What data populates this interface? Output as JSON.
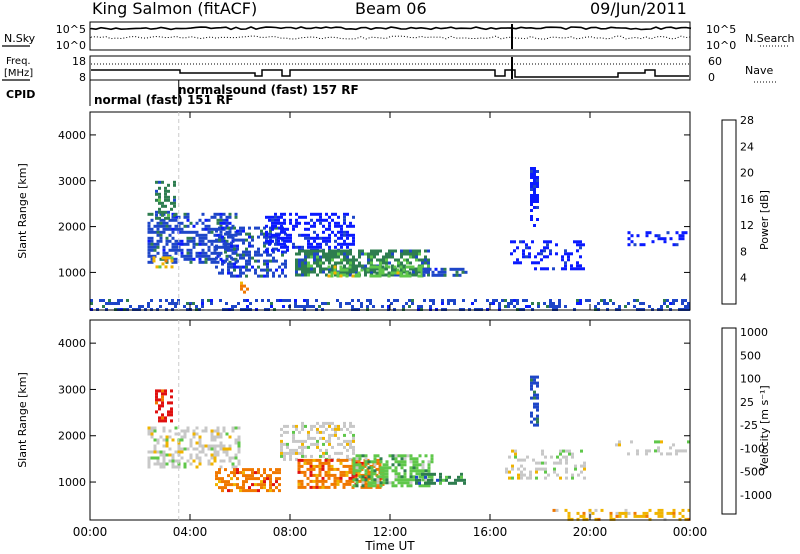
{
  "header": {
    "station": "King Salmon (fitACF)",
    "beam": "Beam 06",
    "date": "09/Jun/2011"
  },
  "noise_panel": {
    "left_label": "N.Sky",
    "left_top_tick": "10^5",
    "left_bottom_tick": "10^0",
    "right_label": "N.Search",
    "right_top_tick": "10^5",
    "right_bottom_tick": "10^0"
  },
  "freq_panel": {
    "left_label_line1": "Freq.",
    "left_label_line2": "[MHz]",
    "left_top_tick": "18",
    "left_bottom_tick": "8",
    "right_label": "Nave",
    "right_top_tick": "60",
    "right_bottom_tick": "0"
  },
  "cpid": {
    "label": "CPID",
    "modes": [
      {
        "text": "normal (fast) 151 RF",
        "start_hour": 0
      },
      {
        "text": "normalsound (fast) 157 RF",
        "start_hour": 3.55
      }
    ]
  },
  "chart_data": [
    {
      "type": "heatmap",
      "quantity": "power",
      "ylabel": "Slant Range [km]",
      "ylim": [
        180,
        4500
      ],
      "yticks": [
        1000,
        2000,
        3000,
        4000
      ],
      "xlim": [
        0,
        24
      ],
      "colorbar": {
        "label": "Power [dB]",
        "ticks": [
          "4",
          "8",
          "12",
          "16",
          "20",
          "24",
          "28"
        ],
        "colors": [
          "#0a1aff",
          "#1e46c8",
          "#2e7d4f",
          "#5fc74a",
          "#f0b400",
          "#f07800",
          "#e01010"
        ]
      },
      "regions": [
        {
          "t": [
            2.3,
            5.8
          ],
          "r": [
            1200,
            2300
          ],
          "level": 1,
          "density": 0.55
        },
        {
          "t": [
            2.6,
            3.4
          ],
          "r": [
            2200,
            3000
          ],
          "level": 2,
          "density": 0.5
        },
        {
          "t": [
            5.0,
            7.8
          ],
          "r": [
            900,
            2000
          ],
          "level": 1,
          "density": 0.45
        },
        {
          "t": [
            7.0,
            10.6
          ],
          "r": [
            1500,
            2300
          ],
          "level": 0,
          "density": 0.45
        },
        {
          "t": [
            8.2,
            13.6
          ],
          "r": [
            950,
            1500
          ],
          "level": 2,
          "density": 0.7
        },
        {
          "t": [
            9.5,
            13.3
          ],
          "r": [
            950,
            1150
          ],
          "level": 3,
          "density": 0.55
        },
        {
          "t": [
            13.3,
            15.0
          ],
          "r": [
            950,
            1100
          ],
          "level": 1,
          "density": 0.55
        },
        {
          "t": [
            16.8,
            19.8
          ],
          "r": [
            1100,
            1700
          ],
          "level": 0,
          "density": 0.3
        },
        {
          "t": [
            17.6,
            17.9
          ],
          "r": [
            2000,
            3300
          ],
          "level": 0,
          "density": 0.6
        },
        {
          "t": [
            2.5,
            3.3
          ],
          "r": [
            1150,
            1350
          ],
          "level": 4,
          "density": 0.5
        },
        {
          "t": [
            6.0,
            6.3
          ],
          "r": [
            600,
            800
          ],
          "level": 5,
          "density": 0.6
        },
        {
          "t": [
            21.5,
            24.0
          ],
          "r": [
            1600,
            1900
          ],
          "level": 0,
          "density": 0.25
        },
        {
          "t": [
            0.0,
            24.0
          ],
          "r": [
            180,
            420
          ],
          "level": 1,
          "density": 0.35
        }
      ]
    },
    {
      "type": "heatmap",
      "quantity": "velocity",
      "ylabel": "Slant Range [km]",
      "xlabel": "Time UT",
      "ylim": [
        180,
        4500
      ],
      "yticks": [
        1000,
        2000,
        3000,
        4000
      ],
      "xlim": [
        0,
        24
      ],
      "xticks": [
        "00:00",
        "04:00",
        "08:00",
        "12:00",
        "16:00",
        "20:00",
        "00:00"
      ],
      "colorbar": {
        "label": "Velocity [m s⁻¹]",
        "ticks": [
          "1000",
          "500",
          "100",
          "25",
          "-25",
          "-100",
          "-500",
          "-1000"
        ],
        "colors": [
          "#1e46c8",
          "#2e7d4f",
          "#5fc74a",
          "#c8c8c8",
          "#f0b400",
          "#f07800",
          "#e01010"
        ]
      },
      "regions": [
        {
          "t": [
            2.3,
            6.0
          ],
          "r": [
            1300,
            2200
          ],
          "level": 3,
          "density": 0.45
        },
        {
          "t": [
            2.6,
            3.3
          ],
          "r": [
            2300,
            3000
          ],
          "level": 6,
          "density": 0.5
        },
        {
          "t": [
            5.0,
            7.6
          ],
          "r": [
            800,
            1300
          ],
          "level": 5,
          "density": 0.55
        },
        {
          "t": [
            7.6,
            10.6
          ],
          "r": [
            1500,
            2300
          ],
          "level": 3,
          "density": 0.4
        },
        {
          "t": [
            8.3,
            11.7
          ],
          "r": [
            900,
            1500
          ],
          "level": 5,
          "density": 0.65
        },
        {
          "t": [
            10.5,
            13.7
          ],
          "r": [
            900,
            1600
          ],
          "level": 2,
          "density": 0.65
        },
        {
          "t": [
            13.0,
            15.0
          ],
          "r": [
            950,
            1200
          ],
          "level": 1,
          "density": 0.55
        },
        {
          "t": [
            17.6,
            17.9
          ],
          "r": [
            2200,
            3300
          ],
          "level": 0,
          "density": 0.6
        },
        {
          "t": [
            16.6,
            19.8
          ],
          "r": [
            1100,
            1700
          ],
          "level": 3,
          "density": 0.3
        },
        {
          "t": [
            21.0,
            24.0
          ],
          "r": [
            1600,
            1900
          ],
          "level": 3,
          "density": 0.25
        },
        {
          "t": [
            18.5,
            24.0
          ],
          "r": [
            180,
            420
          ],
          "level": 4,
          "density": 0.35
        }
      ]
    }
  ]
}
